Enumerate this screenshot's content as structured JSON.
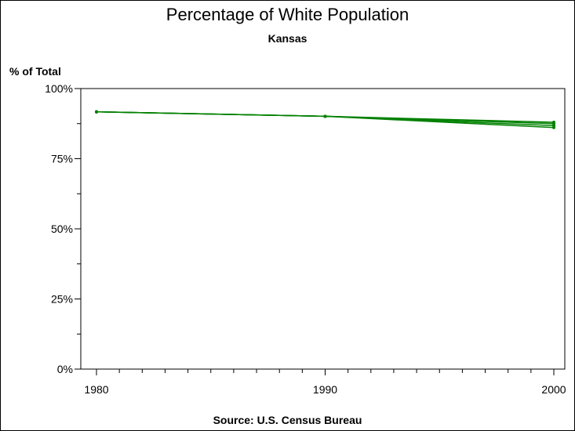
{
  "chart_data": {
    "type": "line",
    "title": "Percentage of White Population",
    "subtitle": "Kansas",
    "ylabel": "% of Total",
    "footnote": "Source: U.S. Census Bureau",
    "x": [
      1980,
      1990,
      2000
    ],
    "xticks": [
      "1980",
      "1990",
      "2000"
    ],
    "xlim": [
      1980,
      2000
    ],
    "ylim": [
      0,
      100
    ],
    "yticks": [
      "0%",
      "25%",
      "50%",
      "75%",
      "100%"
    ],
    "ytick_values": [
      0,
      25,
      50,
      75,
      100
    ],
    "grid": false,
    "color": "#008000",
    "series": [
      {
        "values": [
          91.7,
          90.1,
          86.1
        ]
      },
      {
        "values": [
          91.7,
          90.1,
          86.8
        ]
      },
      {
        "values": [
          91.7,
          90.1,
          87.5
        ]
      },
      {
        "values": [
          91.7,
          90.1,
          88.0
        ]
      }
    ]
  }
}
